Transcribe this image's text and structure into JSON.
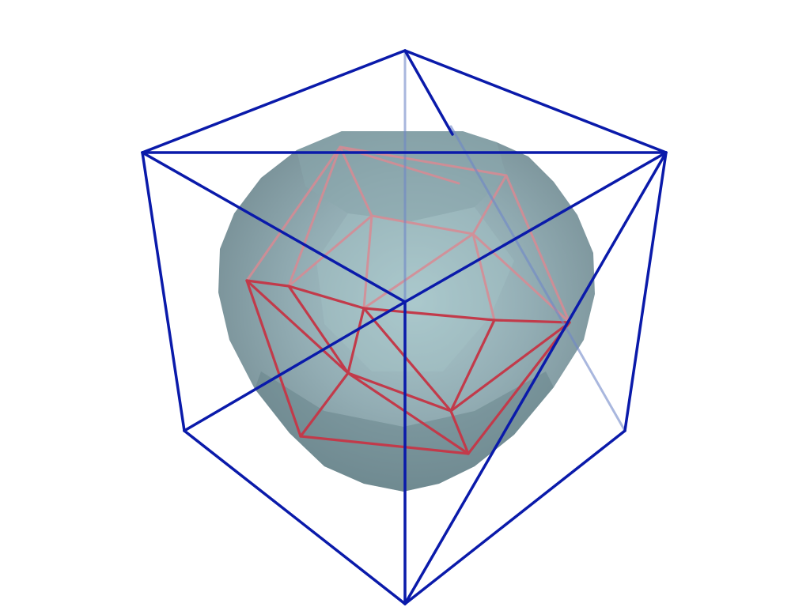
{
  "scene": {
    "background": "#ffffff",
    "objects": [
      {
        "id": "solid",
        "name": "translucent-rounded-solid",
        "kind": "smooth-solid",
        "color": "#7f9aa2",
        "opacity": 0.85
      },
      {
        "id": "icosahedron",
        "name": "red-icosahedron-wireframe",
        "kind": "wireframe",
        "color": "#c23a4a"
      },
      {
        "id": "cube",
        "name": "blue-cube-wireframe",
        "kind": "wireframe",
        "color": "#0a1aaa"
      }
    ]
  }
}
